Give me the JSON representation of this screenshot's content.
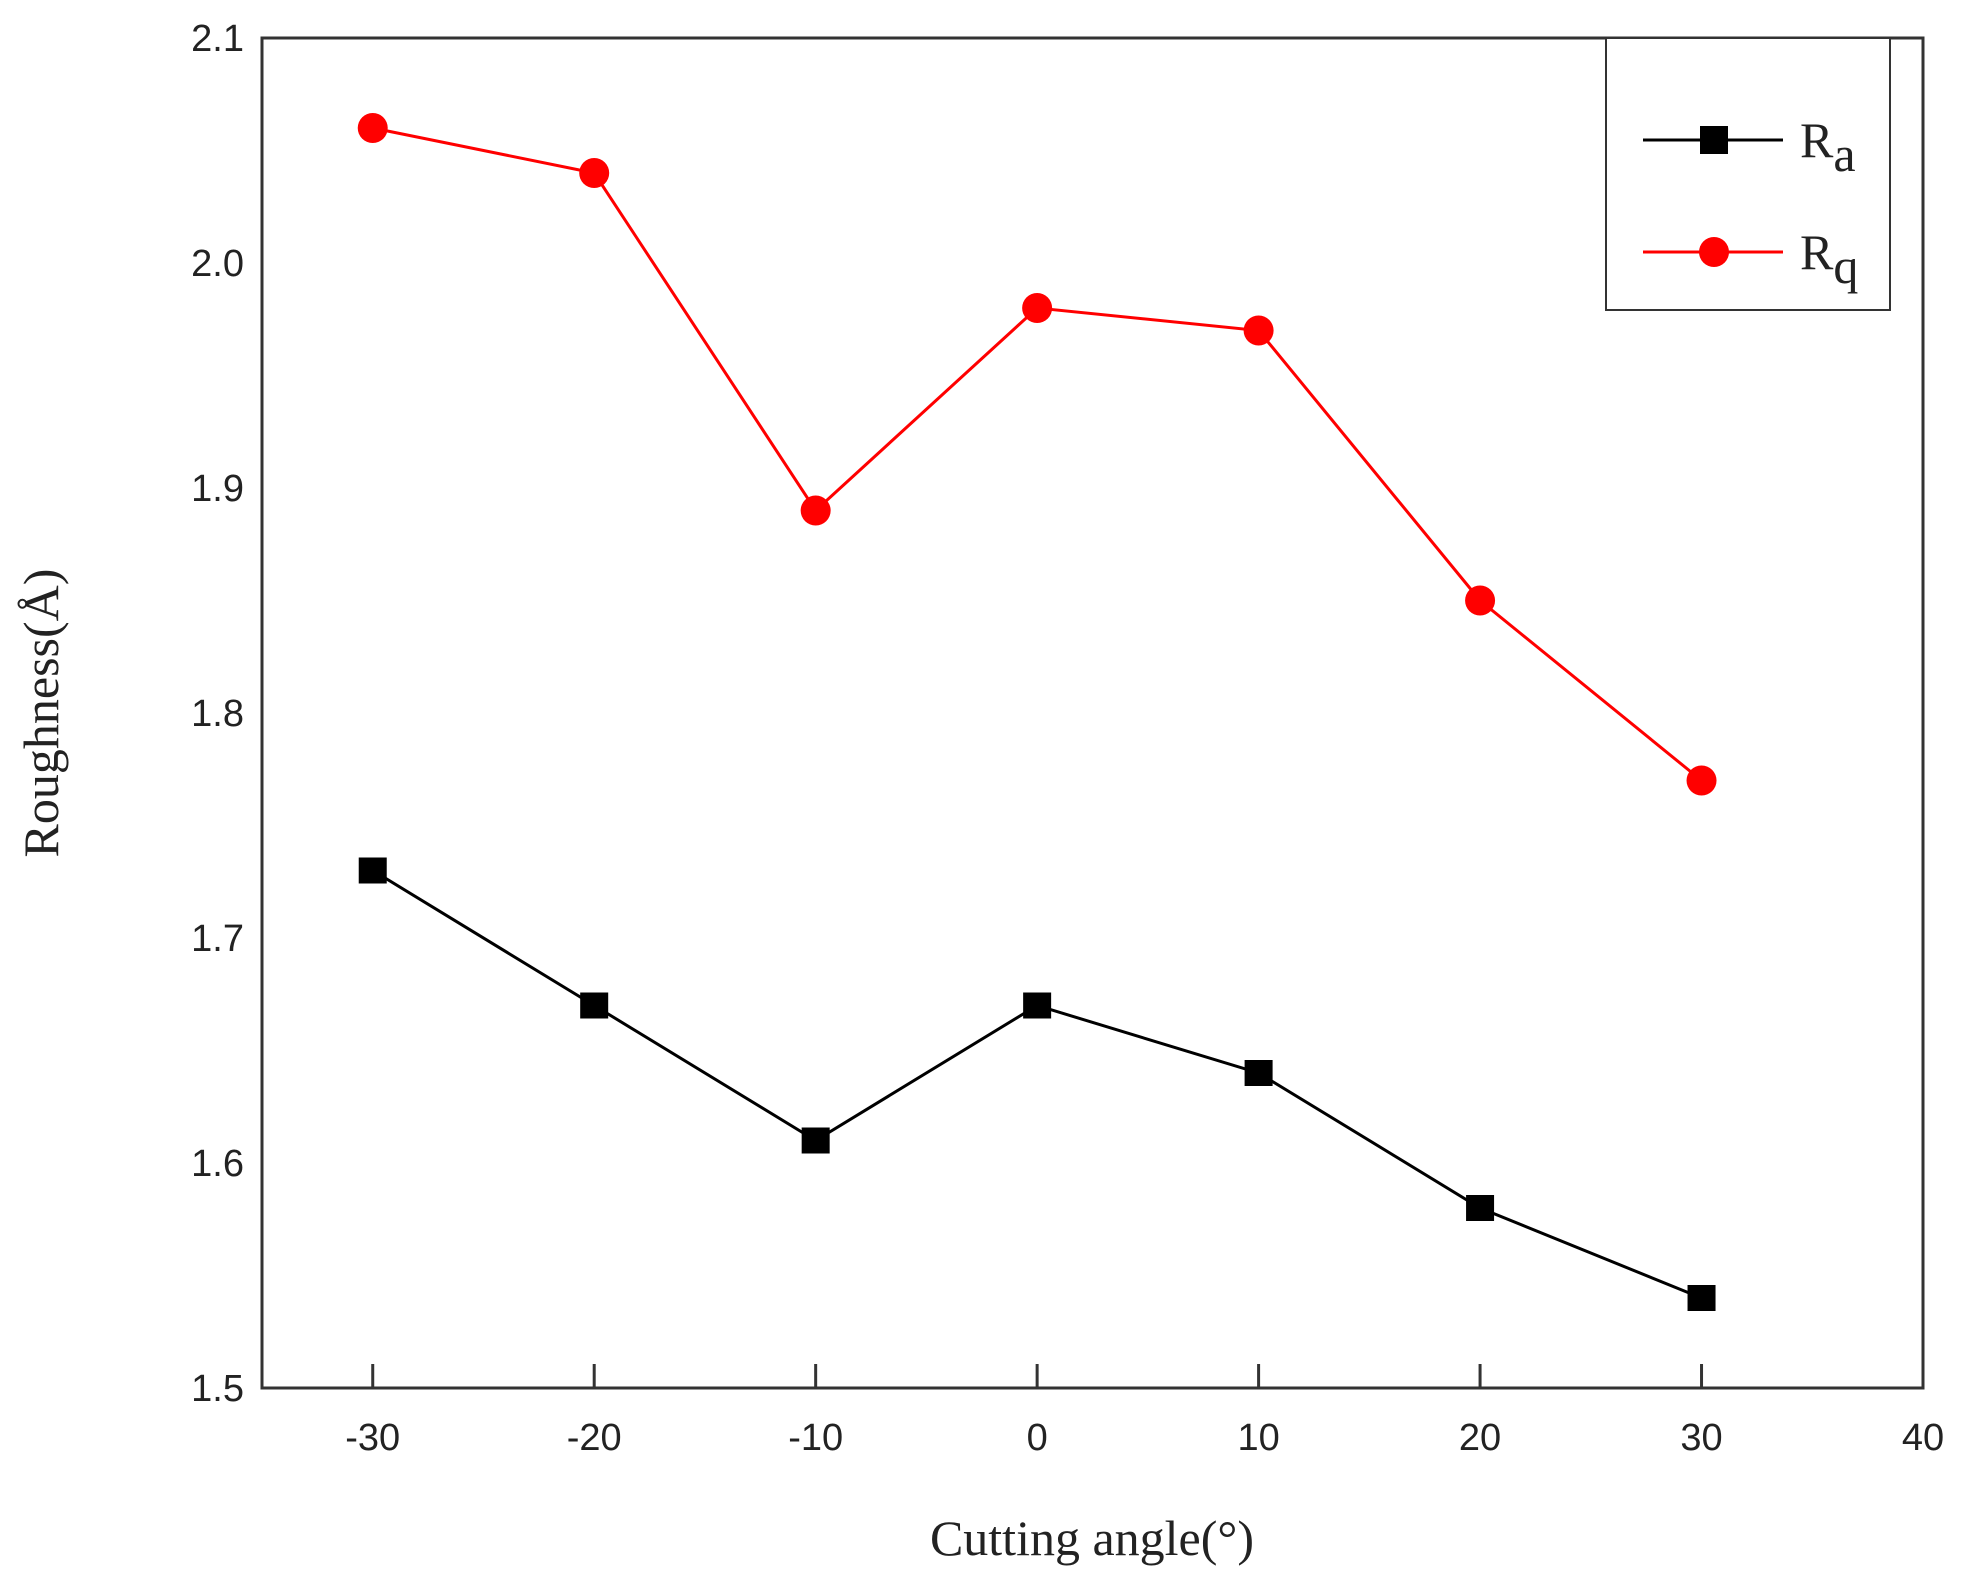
{
  "chart_data": {
    "type": "line",
    "title": "",
    "xlabel": "Cutting angle(°)",
    "ylabel": "Roughness(Å)",
    "xlim": [
      -35,
      40
    ],
    "ylim": [
      1.5,
      2.1
    ],
    "xticks": [
      "-30",
      "-20",
      "-10",
      "0",
      "10",
      "20",
      "30",
      "40"
    ],
    "xtick_values": [
      -30,
      -20,
      -10,
      0,
      10,
      20,
      30,
      40
    ],
    "yticks": [
      "1.5",
      "1.6",
      "1.7",
      "1.8",
      "1.9",
      "2.0",
      "2.1"
    ],
    "ytick_values": [
      1.5,
      1.6,
      1.7,
      1.8,
      1.9,
      2.0,
      2.1
    ],
    "x": [
      -30,
      -20,
      -10,
      0,
      10,
      20,
      30
    ],
    "legend_position": "top-right",
    "series": [
      {
        "name": "Ra",
        "base": "R",
        "sub": "a",
        "color": "#000000",
        "marker": "square",
        "values": [
          1.73,
          1.67,
          1.61,
          1.67,
          1.64,
          1.58,
          1.54
        ]
      },
      {
        "name": "Rq",
        "base": "R",
        "sub": "q",
        "color": "#ff0000",
        "marker": "circle",
        "values": [
          2.06,
          2.04,
          1.89,
          1.98,
          1.97,
          1.85,
          1.77
        ]
      }
    ]
  }
}
